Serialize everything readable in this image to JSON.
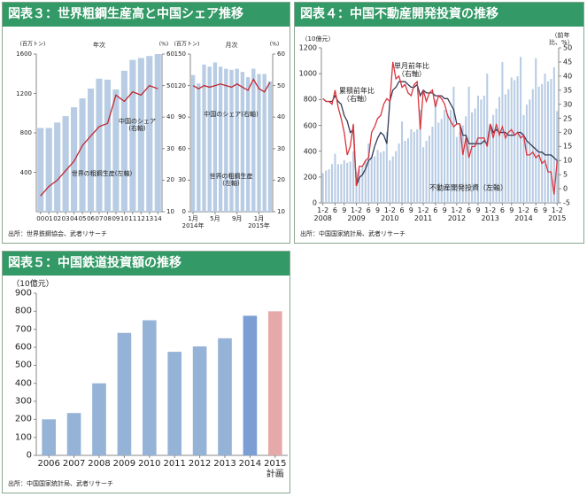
{
  "chart_data": [
    {
      "type": "bar_line",
      "title": "図表３：世界粗鋼生産高と中国シェア推移",
      "subtitle": "年次",
      "ylabel": "(百万トン)",
      "y2label": "(%)",
      "categories": [
        "00",
        "01",
        "02",
        "03",
        "04",
        "05",
        "06",
        "07",
        "08",
        "09",
        "10",
        "11",
        "12",
        "13",
        "14"
      ],
      "series": [
        {
          "name": "世界の粗鋼生産(左軸)",
          "type": "bar",
          "color": "#b8cce4",
          "values": [
            850,
            850,
            905,
            970,
            1060,
            1150,
            1250,
            1350,
            1340,
            1240,
            1430,
            1540,
            1560,
            1580,
            1600
          ]
        },
        {
          "name": "中国のシェア\n(右軸)",
          "type": "line",
          "axis": "y2",
          "color": "#c0272d",
          "values": [
            15,
            18,
            20,
            23,
            26,
            31,
            34,
            37,
            38,
            47,
            45,
            48,
            47,
            50,
            49
          ]
        }
      ],
      "ylim": [
        0,
        1600
      ],
      "yticks": [
        400,
        800,
        1200,
        1600
      ],
      "y2lim": [
        10,
        60
      ],
      "y2ticks": [
        10,
        20,
        30,
        40,
        50,
        60
      ],
      "grid": false,
      "source": "出所：世界鉄鋼協会、武者リサーチ"
    },
    {
      "type": "bar_line",
      "subtitle": "月次",
      "ylabel": "(百万トン)",
      "y2label": "(%)",
      "categories": [
        "1月\n2014年",
        null,
        null,
        null,
        "5月",
        null,
        null,
        null,
        "9月",
        null,
        null,
        null,
        "1月\n2015年",
        null,
        null
      ],
      "series": [
        {
          "name": "世界の粗鋼生産\n(左軸)",
          "type": "bar",
          "color": "#b8cce4",
          "values": [
            130,
            122,
            140,
            138,
            142,
            138,
            136,
            135,
            136,
            133,
            128,
            136,
            131,
            131,
            124
          ]
        },
        {
          "name": "中国のシェア(右軸)",
          "type": "line",
          "axis": "y2",
          "color": "#c0272d",
          "values": [
            50,
            49,
            50,
            49.5,
            50,
            50.5,
            50,
            49.5,
            50.5,
            49.5,
            48.5,
            52,
            49,
            48,
            51
          ]
        }
      ],
      "ylim": [
        0,
        150
      ],
      "yticks": [
        0,
        30,
        60,
        90,
        120,
        150
      ],
      "y2lim": [
        10,
        60
      ],
      "y2ticks": [
        10,
        20,
        30,
        40,
        50,
        60
      ],
      "grid": false
    },
    {
      "type": "bar_line",
      "title": "図表４：中国不動産開発投資の推移",
      "ylabel": "（10億元）",
      "y2label": "（前年比、%）",
      "categories": [
        "1-2\n2008",
        null,
        null,
        null,
        "6",
        null,
        null,
        "9",
        null,
        null,
        null,
        "1-2\n2009",
        null,
        null,
        null,
        "6",
        null,
        null,
        "9",
        null,
        null,
        null,
        "1-2\n2010",
        null,
        null,
        null,
        "6",
        null,
        null,
        "9",
        null,
        null,
        null,
        "1-2\n2011",
        null,
        null,
        null,
        "6",
        null,
        null,
        "9",
        null,
        null,
        null,
        "1-2\n2012",
        null,
        null,
        null,
        "6",
        null,
        null,
        "9",
        null,
        null,
        null,
        "1-2\n2013",
        null,
        null,
        null,
        "6",
        null,
        null,
        "9",
        null,
        null,
        null,
        "1-2\n2014",
        null,
        null,
        null,
        "6",
        null,
        null,
        "9",
        null,
        null,
        null,
        "1-2\n2015"
      ],
      "series": [
        {
          "name": "不動産開発投資（左軸）",
          "type": "bar",
          "color": "#b8cce4",
          "values": [
            230,
            250,
            260,
            300,
            380,
            300,
            300,
            330,
            310,
            320,
            400,
            240,
            260,
            290,
            330,
            460,
            350,
            360,
            410,
            390,
            400,
            550,
            330,
            360,
            400,
            460,
            630,
            480,
            500,
            570,
            550,
            570,
            720,
            430,
            480,
            520,
            590,
            800,
            620,
            650,
            720,
            690,
            720,
            900,
            510,
            550,
            600,
            670,
            900,
            700,
            730,
            830,
            800,
            830,
            1000,
            600,
            680,
            730,
            820,
            1090,
            840,
            880,
            970,
            950,
            980,
            1130,
            680,
            760,
            800,
            880,
            1120,
            900,
            920,
            1000,
            940,
            960,
            1050,
            710
          ]
        },
        {
          "name": "累積前年比\n（右軸）",
          "type": "line",
          "axis": "y2",
          "color": "#333a55",
          "values": [
            32,
            31,
            31,
            31,
            33,
            31,
            30,
            26,
            24,
            20,
            21,
            1,
            4,
            5,
            7,
            10,
            11,
            15,
            18,
            20,
            19,
            16,
            31,
            35,
            36,
            38,
            38,
            38,
            37,
            36,
            36,
            37,
            33,
            35,
            34,
            34,
            34,
            33,
            33,
            33,
            32,
            32,
            30,
            28,
            23,
            23,
            19,
            19,
            16,
            16,
            16,
            16,
            16,
            17,
            16,
            23,
            20,
            21,
            20,
            20,
            20,
            19,
            19,
            19,
            20,
            20,
            19,
            17,
            16,
            15,
            14,
            13,
            13,
            12,
            12,
            12,
            11,
            10
          ]
        },
        {
          "name": "単月前年比\n（右軸）",
          "type": "line",
          "axis": "y2",
          "color": "#d9363e",
          "values": [
            32,
            31,
            31,
            30,
            35,
            29,
            25,
            20,
            12,
            15,
            23,
            1,
            8,
            8,
            10,
            11,
            20,
            22,
            25,
            26,
            30,
            32,
            31,
            45,
            39,
            40,
            36,
            37,
            34,
            33,
            37,
            38,
            21,
            35,
            31,
            34,
            35,
            29,
            33,
            32,
            30,
            26,
            24,
            22,
            23,
            23,
            12,
            18,
            11,
            15,
            15,
            18,
            18,
            18,
            15,
            23,
            18,
            23,
            19,
            22,
            18,
            20,
            21,
            19,
            20,
            18,
            19,
            12,
            12,
            13,
            11,
            12,
            9,
            10,
            6,
            6,
            -2,
            10
          ]
        }
      ],
      "ylim": [
        0,
        1200
      ],
      "yticks": [
        0,
        200,
        400,
        600,
        800,
        1000,
        1200
      ],
      "y2lim": [
        -5,
        50
      ],
      "y2ticks": [
        -5,
        0,
        5,
        10,
        15,
        20,
        25,
        30,
        35,
        40,
        45,
        50
      ],
      "grid": false,
      "source": "出所：中国国家統計局、武者リサーチ"
    },
    {
      "type": "bar",
      "title": "図表５：中国鉄道投資額の推移",
      "ylabel": "（10億元）",
      "categories": [
        "2006",
        "2007",
        "2008",
        "2009",
        "2010",
        "2011",
        "2012",
        "2013",
        "2014",
        "2015\n計画"
      ],
      "series": [
        {
          "type": "bar",
          "colors": [
            "#95b3d7",
            "#95b3d7",
            "#95b3d7",
            "#95b3d7",
            "#95b3d7",
            "#95b3d7",
            "#95b3d7",
            "#95b3d7",
            "#7b9fd4",
            "#e6a9a9"
          ],
          "values": [
            200,
            235,
            400,
            680,
            750,
            575,
            605,
            650,
            775,
            800
          ]
        }
      ],
      "ylim": [
        0,
        900
      ],
      "yticks": [
        0,
        100,
        200,
        300,
        400,
        500,
        600,
        700,
        800,
        900
      ],
      "grid": false,
      "source": "出所：中国国家統計局、武者リサーチ"
    }
  ]
}
